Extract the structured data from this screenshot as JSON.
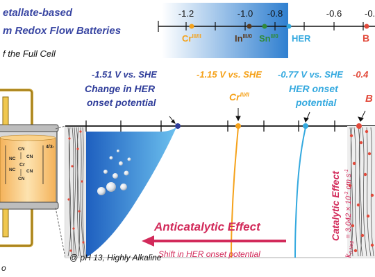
{
  "header": {
    "title_line1": "etallate-based",
    "title_line2": "m Redox Flow Batteries",
    "subtitle": "f the Full Cell"
  },
  "top_scale": {
    "ticks": [
      "-1.2",
      "-1.0",
      "-0.8",
      "-0.6",
      "-0."
    ],
    "markers": {
      "cr": {
        "main": "Cr",
        "sup": "III/II",
        "color": "#f5a21b"
      },
      "in": {
        "main": "In",
        "sup": "III/0",
        "color": "#5a3a1e"
      },
      "sn": {
        "main": "Sn",
        "sup": "II/0",
        "color": "#2f8a3a"
      },
      "her": {
        "main": "HER",
        "color": "#34a9df"
      },
      "b": {
        "main": "B",
        "color": "#e24a3b"
      }
    }
  },
  "annotations": {
    "blue_potential": "-1.51 V vs. SHE",
    "blue_desc1": "Change in HER",
    "blue_desc2": "onset potential",
    "orange_potential": "-1.15 V vs. SHE",
    "cyan_potential": "-0.77 V vs. SHE",
    "red_potential": "-0.4",
    "cr_label_main": "Cr",
    "cr_label_sup": "III/II",
    "her_desc1": "HER onset",
    "her_desc2": "potential",
    "b_label": "B"
  },
  "cell": {
    "complex_charge": "4/3-",
    "ligand": "CN",
    "ligand_left": "NC",
    "center": "Cr"
  },
  "catalytic": {
    "title": "Catalytic Effect",
    "k_sym": "k",
    "k_sub": "0,Neg",
    "k_value": " = 3.042 × 10",
    "k_exp": "-3",
    "k_unit": " cm s",
    "k_unit_exp": "-1"
  },
  "bottom": {
    "anticatalytic": "Anticatalytic Effect",
    "shift": "Shift in HER onset potential",
    "ph": "@ pH 13, Highly Alkaline",
    "corner": "o"
  }
}
